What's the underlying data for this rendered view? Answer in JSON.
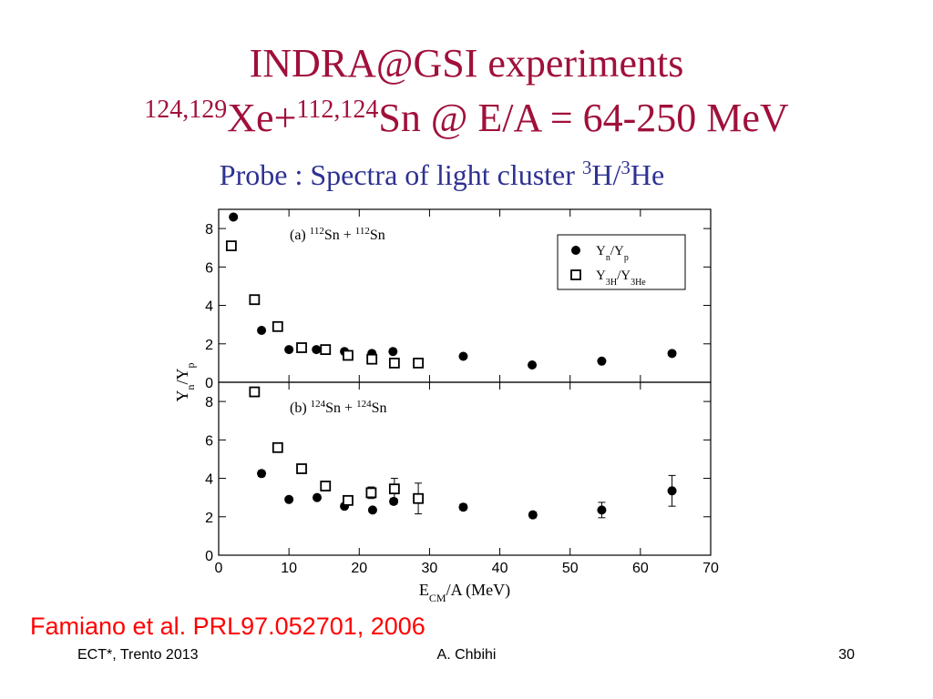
{
  "slide": {
    "title": "INDRA@GSI experiments",
    "reaction": [
      "124,129",
      "Xe+",
      "112,124",
      "Sn @ E/A = 64-250 MeV"
    ],
    "probe": [
      "Probe : Spectra of light cluster ",
      "3",
      "H/",
      "3",
      "He"
    ],
    "citation": "Famiano et al. PRL97.052701, 2006",
    "footer": {
      "left": "ECT*, Trento 2013",
      "center": "A. Chbihi",
      "right": "30"
    }
  },
  "chart_data": [
    {
      "type": "scatter",
      "panel_label": [
        "(a) ",
        "112",
        "Sn + ",
        "112",
        "Sn"
      ],
      "ylabel": [
        "Y",
        "n",
        "/Y",
        "p"
      ],
      "xlim": [
        0,
        70
      ],
      "xticks": [
        0,
        10,
        20,
        30,
        40,
        50,
        60,
        70
      ],
      "ylim": [
        0,
        9
      ],
      "yticks": [
        0,
        2,
        4,
        6,
        8
      ],
      "legend": "upper right",
      "series": [
        {
          "name": [
            "Y",
            "n",
            "/Y",
            "p"
          ],
          "marker": "circle",
          "color": "#000000",
          "x": [
            2.1,
            6.1,
            10,
            13.9,
            17.9,
            21.8,
            24.8,
            34.8,
            44.6,
            54.5,
            64.5
          ],
          "values": [
            8.6,
            2.7,
            1.7,
            1.7,
            1.6,
            1.5,
            1.6,
            1.35,
            0.9,
            1.1,
            1.5
          ]
        },
        {
          "name": [
            "Y",
            "3H",
            "/Y",
            "3He"
          ],
          "marker": "square",
          "color": "#000000",
          "x": [
            1.8,
            5.1,
            8.4,
            11.8,
            15.2,
            18.4,
            21.8,
            25,
            28.4
          ],
          "values": [
            7.1,
            4.3,
            2.9,
            1.8,
            1.7,
            1.4,
            1.2,
            1.0,
            1.0
          ]
        }
      ]
    },
    {
      "type": "scatter",
      "panel_label": [
        "(b) ",
        "124",
        "Sn + ",
        "124",
        "Sn"
      ],
      "xlabel": [
        "E",
        "CM",
        "/A (MeV)"
      ],
      "xlim": [
        0,
        70
      ],
      "xticks": [
        0,
        10,
        20,
        30,
        40,
        50,
        60,
        70
      ],
      "ylim": [
        0,
        9
      ],
      "yticks": [
        0,
        2,
        4,
        6,
        8
      ],
      "series": [
        {
          "marker": "circle",
          "color": "#000000",
          "x": [
            6.1,
            10,
            14,
            17.9,
            21.9,
            24.9,
            34.8,
            44.7,
            54.5,
            64.5
          ],
          "values": [
            4.25,
            2.9,
            3.0,
            2.55,
            2.35,
            2.8,
            2.5,
            2.1,
            2.35,
            3.35
          ],
          "errors": [
            0.15,
            0.1,
            0.1,
            0.1,
            0.1,
            0.15,
            0.15,
            0.15,
            0.4,
            0.8
          ]
        },
        {
          "marker": "square",
          "color": "#000000",
          "x": [
            5.1,
            8.4,
            11.8,
            15.2,
            18.4,
            21.7,
            25,
            28.4
          ],
          "values": [
            8.5,
            5.6,
            4.5,
            3.6,
            2.85,
            3.25,
            3.45,
            2.95
          ],
          "errors": [
            0.2,
            0.1,
            0.1,
            0.1,
            0.15,
            0.3,
            0.55,
            0.8
          ]
        }
      ]
    }
  ]
}
